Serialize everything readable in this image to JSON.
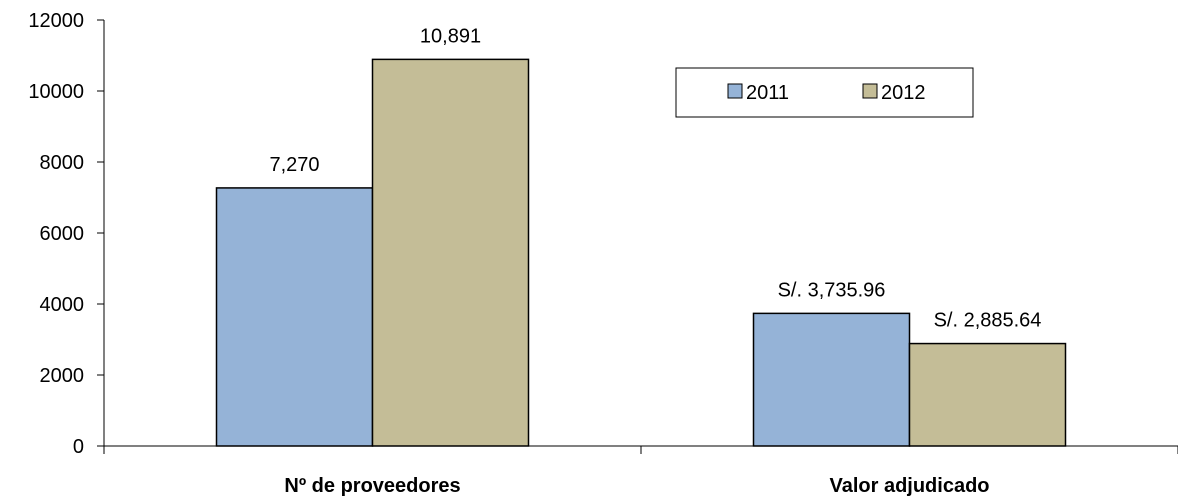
{
  "chart_data": {
    "type": "bar",
    "title": "",
    "xlabel": "",
    "ylabel": "",
    "categories": [
      "Nº de proveedores",
      "Valor adjudicado"
    ],
    "series": [
      {
        "name": "2011",
        "color": "#95b3d7",
        "values": [
          7270,
          3735.96
        ],
        "labels": [
          "7,270",
          "S/. 3,735.96"
        ]
      },
      {
        "name": "2012",
        "color": "#c4bd97",
        "values": [
          10891,
          2885.64
        ],
        "labels": [
          "10,891",
          "S/. 2,885.64"
        ]
      }
    ],
    "ylim": [
      0,
      12000
    ],
    "yticks": [
      0,
      2000,
      4000,
      6000,
      8000,
      10000,
      12000
    ],
    "ytick_labels": [
      "0",
      "2000",
      "4000",
      "6000",
      "8000",
      "10000",
      "12000"
    ],
    "grid": false,
    "legend": {
      "position": "top-right",
      "entries": [
        "2011",
        "2012"
      ]
    }
  }
}
